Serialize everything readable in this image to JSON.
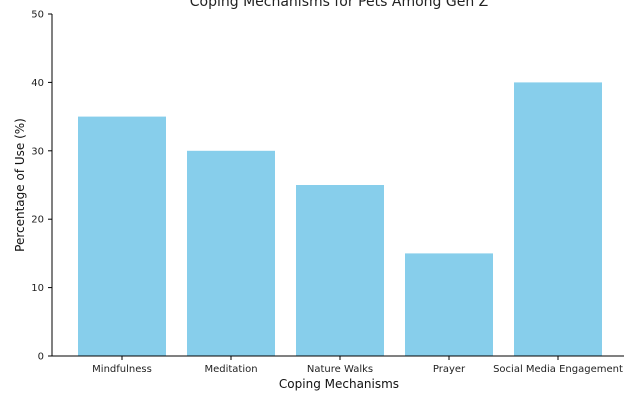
{
  "chart_data": {
    "type": "bar",
    "title": "Coping Mechanisms for Pets Among Gen Z",
    "categories": [
      "Mindfulness",
      "Meditation",
      "Nature Walks",
      "Prayer",
      "Social Media Engagement"
    ],
    "values": [
      35,
      30,
      25,
      15,
      40
    ],
    "xlabel": "Coping Mechanisms",
    "ylabel": "Percentage of Use (%)",
    "ylim": [
      0,
      50
    ],
    "yticks": [
      "0",
      "10",
      "20",
      "30",
      "40",
      "50"
    ],
    "bar_color": "#87CEEB",
    "grid": false,
    "legend": "none"
  }
}
